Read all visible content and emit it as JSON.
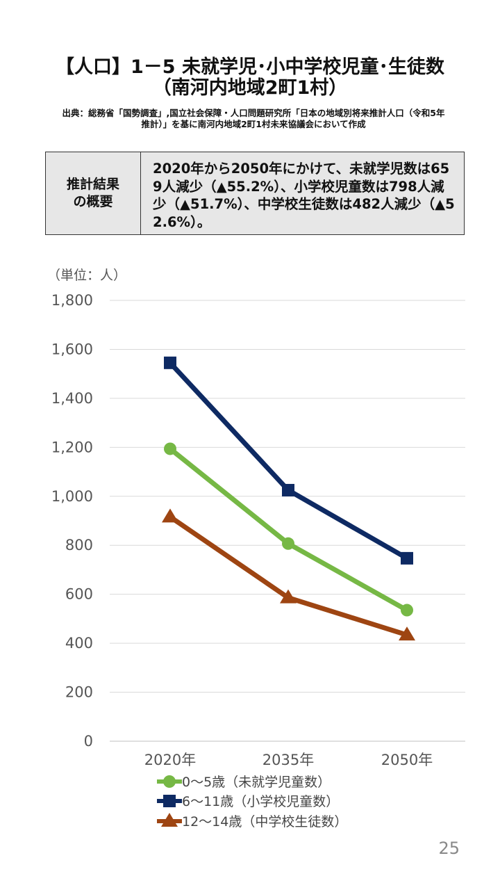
{
  "header": {
    "title_line1": "【人口】1－5 未就学児･小中学校児童･生徒数",
    "title_line2": "（南河内地域2町1村）",
    "source_line1": "出典：総務省「国勢調査」,国立社会保障・人口問題研究所「日本の地域別将来推計人口（令和5年",
    "source_line2": "推計）」を基に南河内地域2町1村未来協議会において作成"
  },
  "summary": {
    "label_line1": "推計結果",
    "label_line2": "の概要",
    "text": "2020年から2050年にかけて、未就学児数は659人減少（▲55.2%）、小学校児童数は798人減少（▲51.7%）、中学校生徒数は482人減少（▲52.6%）。"
  },
  "page_number": "25",
  "colors": {
    "series_green": "#76b845",
    "series_navy": "#0e2a63",
    "series_brown": "#9e4512",
    "grid": "#d9d9d9",
    "tick_text": "#555555"
  },
  "chart_data": {
    "type": "line",
    "unit_label": "（単位：人）",
    "categories": [
      "2020年",
      "2035年",
      "2050年"
    ],
    "ylim": [
      0,
      1800
    ],
    "yticks": [
      0,
      200,
      400,
      600,
      800,
      1000,
      1200,
      1400,
      1600,
      1800
    ],
    "ytick_labels": [
      "0",
      "200",
      "400",
      "600",
      "800",
      "1,000",
      "1,200",
      "1,400",
      "1,600",
      "1,800"
    ],
    "grid": true,
    "legend_position": "bottom",
    "series": [
      {
        "name": "0～5歳（未就学児童数）",
        "values": [
          1194,
          807,
          535
        ],
        "marker": "circle",
        "color": "#76b845"
      },
      {
        "name": "6～11歳（小学校児童数）",
        "values": [
          1545,
          1025,
          747
        ],
        "marker": "square",
        "color": "#0e2a63"
      },
      {
        "name": "12～14歳（中学校生徒数）",
        "values": [
          916,
          586,
          434
        ],
        "marker": "triangle",
        "color": "#9e4512"
      }
    ]
  }
}
